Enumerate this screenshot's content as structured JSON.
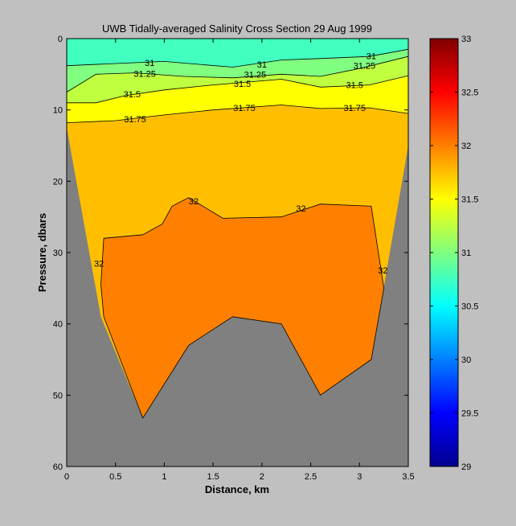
{
  "chart_data": {
    "type": "contour",
    "title": "UWB  Tidally-averaged Salinity Cross Section  29 Aug 1999",
    "xlabel": "Distance, km",
    "ylabel": "Pressure, dbars",
    "xlim": [
      0,
      3.5
    ],
    "ylim": [
      0,
      60
    ],
    "y_reversed": true,
    "x_ticks": [
      "0",
      "0.5",
      "1",
      "1.5",
      "2",
      "2.5",
      "3",
      "3.5"
    ],
    "y_ticks": [
      "0",
      "10",
      "20",
      "30",
      "40",
      "50",
      "60"
    ],
    "colorbar": {
      "colormap": "jet",
      "range": [
        29,
        33
      ],
      "ticks": [
        "29",
        "29.5",
        "30",
        "30.5",
        "31",
        "31.5",
        "32",
        "32.5",
        "33"
      ]
    },
    "bottom_color": "#808080",
    "bottom_profile": [
      [
        0,
        12.5
      ],
      [
        0.35,
        39
      ],
      [
        0.78,
        53.2
      ],
      [
        1.25,
        43
      ],
      [
        1.7,
        39
      ],
      [
        2.2,
        40
      ],
      [
        2.6,
        50
      ],
      [
        3.12,
        45
      ],
      [
        3.5,
        15
      ]
    ],
    "band_colors": {
      "31.0": "#40ffbf",
      "31.0-31.25": "#80ff80",
      "31.25-31.5": "#bfff40",
      "31.5-31.75": "#ffff00",
      "31.75-32": "#ffbf00",
      "32+": "#ff8000"
    },
    "contours": [
      {
        "level": "31",
        "points": [
          [
            0,
            3.8
          ],
          [
            0.5,
            3.5
          ],
          [
            1.0,
            3.2
          ],
          [
            1.7,
            4.0
          ],
          [
            2.2,
            3.0
          ],
          [
            2.6,
            2.8
          ],
          [
            3.1,
            2.5
          ],
          [
            3.5,
            1.5
          ]
        ],
        "labels": [
          {
            "text": "31",
            "x": 0.85,
            "y": 3.4
          },
          {
            "text": "31",
            "x": 2.0,
            "y": 3.6
          },
          {
            "text": "31",
            "x": 3.12,
            "y": 2.4
          }
        ]
      },
      {
        "level": "31.25",
        "points": [
          [
            0,
            7.5
          ],
          [
            0.3,
            5.0
          ],
          [
            0.7,
            4.8
          ],
          [
            1.2,
            5.3
          ],
          [
            1.7,
            5.5
          ],
          [
            2.2,
            5.0
          ],
          [
            2.6,
            5.3
          ],
          [
            3.0,
            4.2
          ],
          [
            3.5,
            2.5
          ]
        ],
        "labels": [
          {
            "text": "31.25",
            "x": 0.8,
            "y": 4.9
          },
          {
            "text": "31.25",
            "x": 1.93,
            "y": 5.0
          },
          {
            "text": "31.25",
            "x": 3.05,
            "y": 3.8
          }
        ]
      },
      {
        "level": "31.5",
        "points": [
          [
            0,
            9
          ],
          [
            0.3,
            9
          ],
          [
            0.6,
            8
          ],
          [
            1.0,
            7.2
          ],
          [
            1.5,
            6.5
          ],
          [
            2.2,
            5.7
          ],
          [
            2.6,
            6.8
          ],
          [
            3.1,
            6.5
          ],
          [
            3.5,
            5.2
          ]
        ],
        "labels": [
          {
            "text": "31.5",
            "x": 0.67,
            "y": 7.8
          },
          {
            "text": "31.5",
            "x": 1.8,
            "y": 6.3
          },
          {
            "text": "31.5",
            "x": 2.95,
            "y": 6.5
          }
        ]
      },
      {
        "level": "31.75",
        "points": [
          [
            0,
            11.8
          ],
          [
            0.5,
            11.5
          ],
          [
            1.0,
            10.7
          ],
          [
            1.5,
            10.0
          ],
          [
            2.2,
            9.3
          ],
          [
            2.6,
            9.8
          ],
          [
            3.1,
            9.7
          ],
          [
            3.5,
            10.5
          ]
        ],
        "labels": [
          {
            "text": "31.75",
            "x": 0.7,
            "y": 11.3
          },
          {
            "text": "31.75",
            "x": 1.82,
            "y": 9.7
          },
          {
            "text": "31.75",
            "x": 2.95,
            "y": 9.7
          }
        ]
      },
      {
        "level": "32",
        "closed": true,
        "points": [
          [
            0.35,
            34.5
          ],
          [
            0.38,
            28
          ],
          [
            0.78,
            27.5
          ],
          [
            0.98,
            26
          ],
          [
            1.08,
            23.5
          ],
          [
            1.25,
            22.3
          ],
          [
            1.6,
            25.2
          ],
          [
            2.2,
            25
          ],
          [
            2.6,
            23.2
          ],
          [
            3.12,
            23.5
          ],
          [
            3.25,
            35
          ],
          [
            3.12,
            45
          ],
          [
            2.6,
            50
          ],
          [
            2.2,
            40
          ],
          [
            1.7,
            39
          ],
          [
            1.25,
            43
          ],
          [
            0.78,
            53.2
          ],
          [
            0.38,
            39
          ]
        ],
        "labels": [
          {
            "text": "32",
            "x": 1.3,
            "y": 22.8
          },
          {
            "text": "32",
            "x": 2.4,
            "y": 23.8
          },
          {
            "text": "32",
            "x": 0.33,
            "y": 31.5
          },
          {
            "text": "32",
            "x": 3.24,
            "y": 32.5
          }
        ]
      }
    ]
  }
}
